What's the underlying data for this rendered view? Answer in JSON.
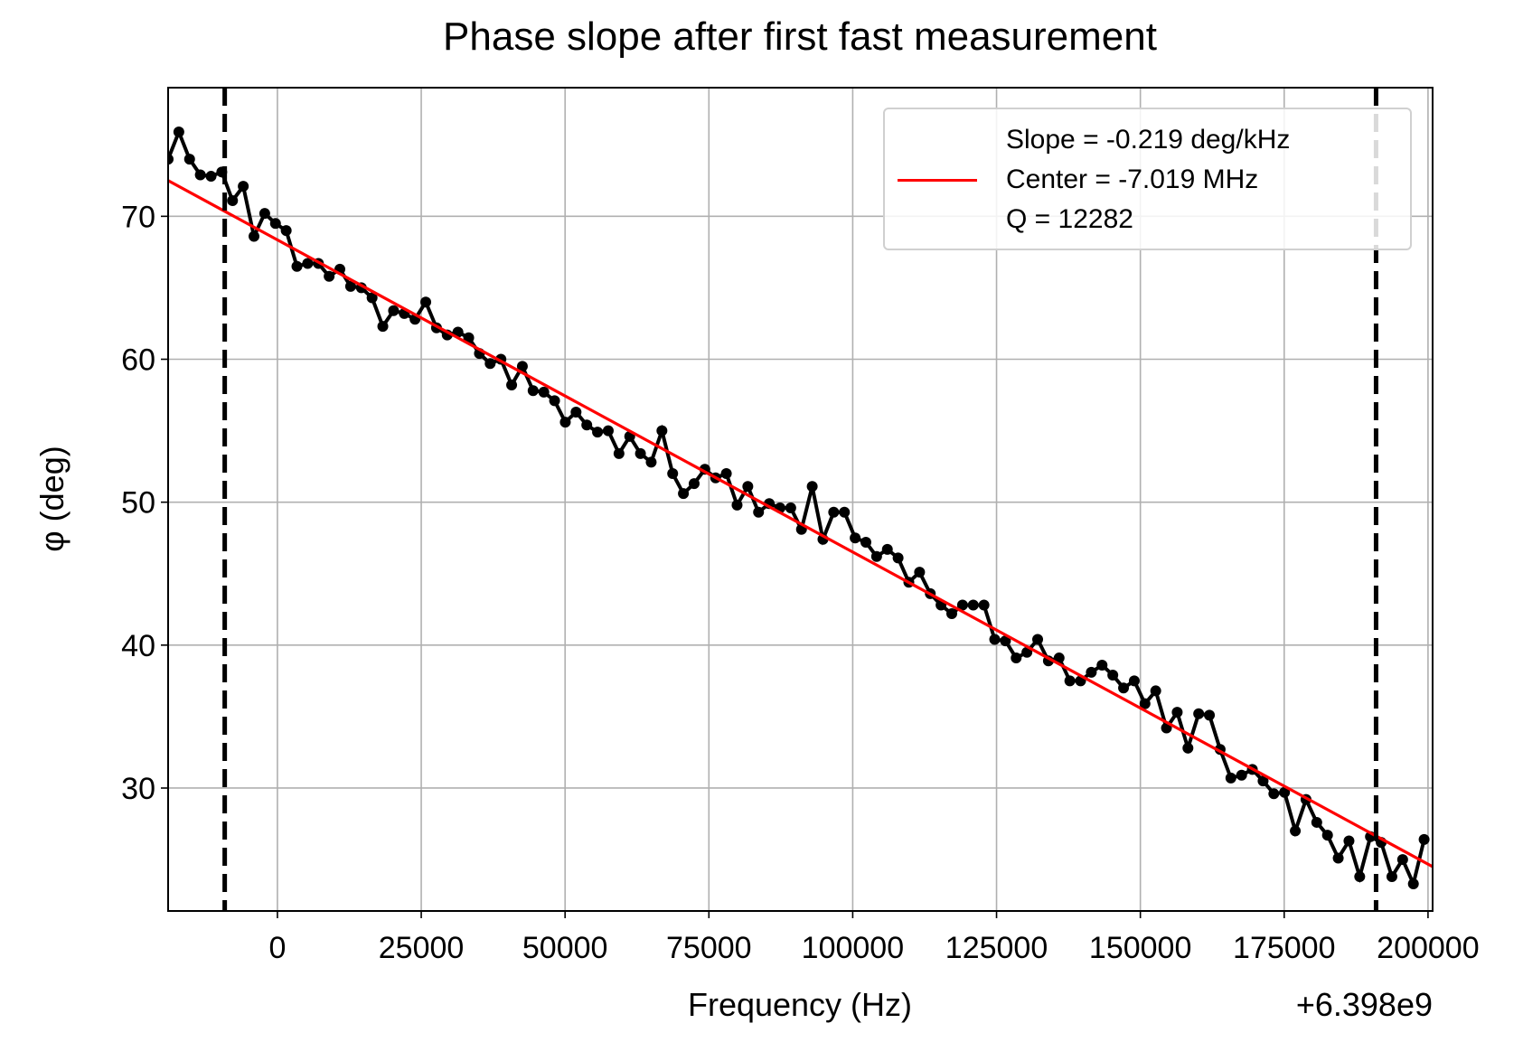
{
  "chart_data": {
    "type": "line",
    "title": "Phase slope after first fast measurement",
    "xlabel": "Frequency (Hz)",
    "ylabel": "φ (deg)",
    "x_offset_text": "+6.398e9",
    "xlim": [
      -19000,
      200800
    ],
    "ylim": [
      21.4,
      79.0
    ],
    "xticks": [
      0,
      25000,
      50000,
      75000,
      100000,
      125000,
      150000,
      175000,
      200000
    ],
    "yticks": [
      30,
      40,
      50,
      60,
      70
    ],
    "grid": true,
    "legend_position": "upper right",
    "x": [
      -19000,
      -17134,
      -15268,
      -13402,
      -11536,
      -9670,
      -7804,
      -5938,
      -4072,
      -2206,
      -340,
      1526,
      3392,
      5258,
      7124,
      8990,
      10856,
      12722,
      14588,
      16454,
      18320,
      20186,
      22052,
      23918,
      25784,
      27650,
      29516,
      31382,
      33248,
      35114,
      36980,
      38846,
      40712,
      42578,
      44444,
      46310,
      48176,
      50042,
      51908,
      53774,
      55640,
      57506,
      59372,
      61238,
      63104,
      64970,
      66836,
      68702,
      70568,
      72434,
      74300,
      76166,
      78032,
      79898,
      81764,
      83630,
      85496,
      87362,
      89228,
      91094,
      92960,
      94826,
      96692,
      98558,
      100424,
      102290,
      104156,
      106022,
      107888,
      109754,
      111620,
      113486,
      115352,
      117218,
      119084,
      120950,
      122816,
      124682,
      126548,
      128414,
      130280,
      132146,
      134012,
      135878,
      137744,
      139610,
      141476,
      143342,
      145208,
      147074,
      148940,
      150806,
      152672,
      154538,
      156404,
      158270,
      160136,
      162002,
      163868,
      165734,
      167600,
      169466,
      171332,
      173198,
      175064,
      176930,
      178796,
      180662,
      182528,
      184394,
      186260,
      188126,
      189992,
      191858,
      193724,
      195590,
      197456,
      199322
    ],
    "series": [
      {
        "color": "#000000",
        "marker": true,
        "values": [
          74.0,
          75.9,
          74.0,
          72.9,
          72.8,
          73.1,
          71.1,
          72.1,
          68.6,
          70.2,
          69.5,
          69.0,
          66.5,
          66.7,
          66.7,
          65.8,
          66.3,
          65.1,
          65.0,
          64.3,
          62.3,
          63.4,
          63.2,
          62.8,
          64.0,
          62.2,
          61.7,
          61.9,
          61.5,
          60.4,
          59.7,
          60.0,
          58.2,
          59.5,
          57.8,
          57.7,
          57.1,
          55.6,
          56.3,
          55.4,
          54.9,
          55.0,
          53.4,
          54.6,
          53.4,
          52.8,
          55.0,
          52.0,
          50.6,
          51.3,
          52.3,
          51.7,
          52.0,
          49.8,
          51.1,
          49.3,
          49.9,
          49.6,
          49.6,
          48.1,
          51.1,
          47.4,
          49.3,
          49.3,
          47.5,
          47.2,
          46.2,
          46.7,
          46.1,
          44.4,
          45.1,
          43.6,
          42.8,
          42.2,
          42.8,
          42.8,
          42.8,
          40.4,
          40.3,
          39.1,
          39.5,
          40.4,
          38.9,
          39.1,
          37.5,
          37.5,
          38.1,
          38.6,
          37.9,
          37.0,
          37.5,
          35.9,
          36.8,
          34.2,
          35.3,
          32.8,
          35.2,
          35.1,
          32.7,
          30.7,
          30.9,
          31.3,
          30.5,
          29.6,
          29.7,
          27.0,
          29.2,
          27.6,
          26.7,
          25.1,
          26.3,
          23.8,
          26.6,
          26.2,
          23.8,
          25.0,
          23.3,
          26.4
        ]
      },
      {
        "name": "Slope = -0.219 deg/kHz\nCenter = -7.019 MHz\nQ = 12282",
        "color": "#ff0000",
        "marker": false,
        "x": [
          -19000,
          200800
        ],
        "values": [
          72.5,
          24.5
        ]
      }
    ],
    "vlines": {
      "x": [
        -9160,
        190970
      ],
      "color": "#000000",
      "style": "dashed"
    }
  }
}
